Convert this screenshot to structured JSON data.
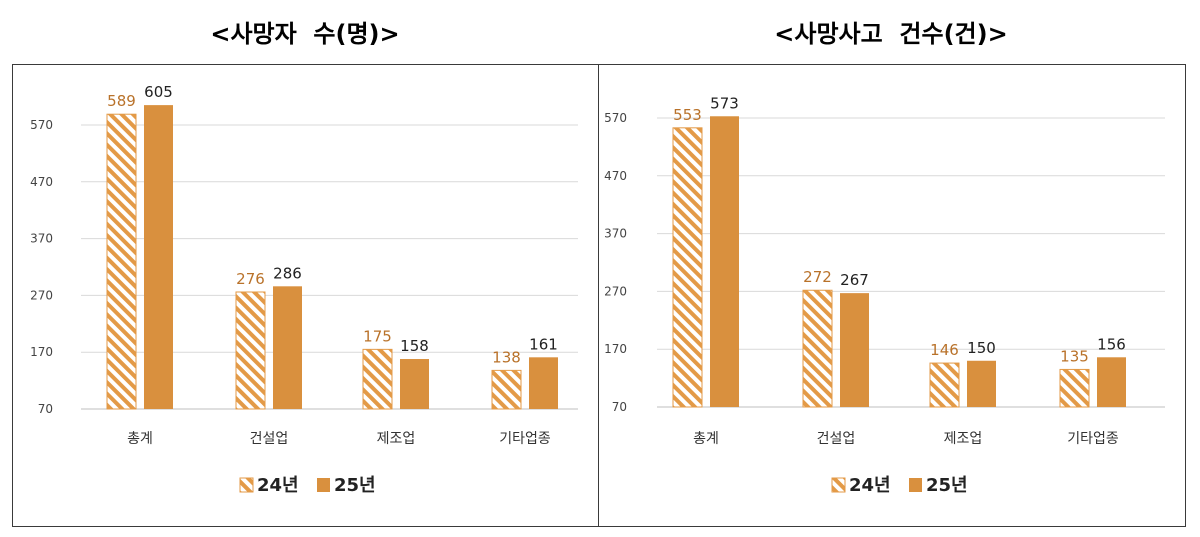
{
  "colors": {
    "series_2024": "#E39A47",
    "series_2025": "#D9903E",
    "label_2024": "#B9722A",
    "label_2025": "#222222",
    "grid": "#D9D9D9",
    "axis_text": "#444444"
  },
  "legend": {
    "items": [
      {
        "label": "24년",
        "pattern": "hatched"
      },
      {
        "label": "25년",
        "pattern": "solid"
      }
    ]
  },
  "chart_data": [
    {
      "type": "bar",
      "title": "<사망자  수(명)>",
      "categories": [
        "총계",
        "건설업",
        "제조업",
        "기타업종"
      ],
      "series": [
        {
          "name": "24년",
          "values": [
            589,
            276,
            175,
            138
          ]
        },
        {
          "name": "25년",
          "values": [
            605,
            286,
            158,
            161
          ]
        }
      ],
      "yticks": [
        70,
        170,
        270,
        370,
        470,
        570
      ],
      "ylim": [
        70,
        620
      ],
      "grid": true,
      "legend_position": "bottom"
    },
    {
      "type": "bar",
      "title": "<사망사고  건수(건)>",
      "categories": [
        "총계",
        "건설업",
        "제조업",
        "기타업종"
      ],
      "series": [
        {
          "name": "24년",
          "values": [
            553,
            272,
            146,
            135
          ]
        },
        {
          "name": "25년",
          "values": [
            573,
            267,
            150,
            156
          ]
        }
      ],
      "yticks": [
        70,
        170,
        270,
        370,
        470,
        570
      ],
      "ylim": [
        70,
        575
      ],
      "grid": true,
      "legend_position": "bottom"
    }
  ]
}
